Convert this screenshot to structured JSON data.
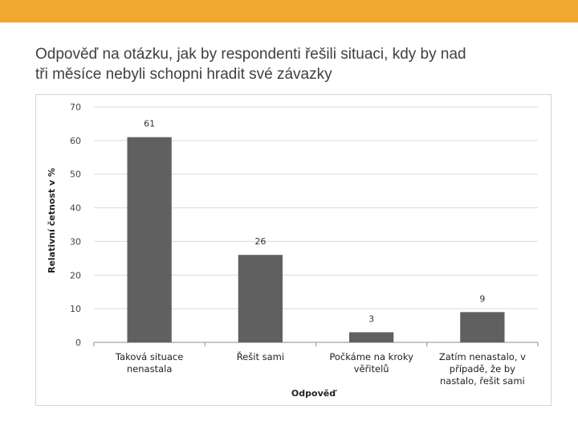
{
  "slide": {
    "title": "Odpověď na otázku, jak by respondenti řešili situaci, kdy by nad\ntři měsíce nebyli schopni hradit své závazky",
    "accent_color": "#f0a830"
  },
  "chart_data": {
    "type": "bar",
    "categories": [
      [
        "Taková situace",
        "nenastala"
      ],
      [
        "Řešit sami"
      ],
      [
        "Počkáme na kroky",
        "věřitelů"
      ],
      [
        "Zatím nenastalo, v",
        "případě, že by",
        "nastalo, řešit sami"
      ]
    ],
    "values": [
      61,
      26,
      3,
      9
    ],
    "data_labels": [
      "61",
      "26",
      "3",
      "9"
    ],
    "xlabel": "Odpověď",
    "ylabel": "Relativní četnost v %",
    "ylim": [
      0,
      70
    ],
    "yticks": [
      0,
      10,
      20,
      30,
      40,
      50,
      60,
      70
    ],
    "grid": true,
    "bar_color": "#606060",
    "grid_color": "#d9d9d9"
  }
}
